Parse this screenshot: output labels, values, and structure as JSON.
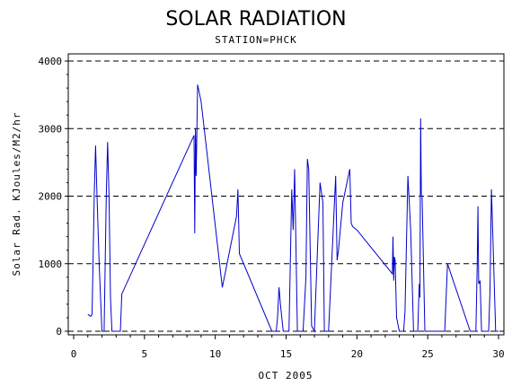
{
  "chart_data": {
    "type": "line",
    "title": "SOLAR RADIATION",
    "subtitle": "STATION=PHCK",
    "xlabel": "OCT 2005",
    "ylabel": "Solar Rad. KJoules/M2/hr",
    "xlim": [
      0,
      30
    ],
    "ylim": [
      0,
      4000
    ],
    "xticks": [
      "0",
      "5",
      "10",
      "15",
      "20",
      "25",
      "30"
    ],
    "yticks": [
      "0",
      "1000",
      "2000",
      "3000",
      "4000"
    ],
    "grid": "horizontal dashed",
    "line_color": "#0000cc",
    "series": [
      {
        "x": [
          1.0,
          1.2,
          1.3,
          1.45,
          1.55,
          1.65,
          1.8,
          2.0,
          2.15,
          2.3,
          2.4,
          2.5,
          2.6,
          2.7,
          2.9,
          3.0,
          3.3,
          3.4,
          8.5,
          8.55,
          8.6,
          8.65,
          8.75,
          9.0,
          10.5,
          11.5,
          11.6,
          11.7,
          14.0,
          14.3,
          14.4,
          14.5,
          14.6,
          14.8,
          15.0,
          15.2,
          15.3,
          15.4,
          15.5,
          15.6,
          15.8,
          16.0,
          16.2,
          16.4,
          16.5,
          16.6,
          16.8,
          17.0,
          17.4,
          17.6,
          17.7,
          17.8,
          18.0,
          18.5,
          18.6,
          18.7,
          19.0,
          19.5,
          19.6,
          19.7,
          20.0,
          22.5,
          22.55,
          22.6,
          22.65,
          22.7,
          22.8,
          23.0,
          23.3,
          23.4,
          23.6,
          23.8,
          24.0,
          24.2,
          24.3,
          24.4,
          24.45,
          24.5,
          24.55,
          24.6,
          24.8,
          25.0,
          26.2,
          26.4,
          28.0,
          28.2,
          28.4,
          28.5,
          28.55,
          28.6,
          28.7,
          28.8,
          29.0,
          29.3,
          29.4,
          29.5,
          29.6,
          29.8,
          30.0
        ],
        "values": [
          250,
          220,
          250,
          2000,
          2750,
          2000,
          1000,
          0,
          0,
          2000,
          2800,
          2000,
          500,
          0,
          0,
          0,
          0,
          550,
          2900,
          1450,
          3000,
          2300,
          3650,
          3400,
          650,
          1700,
          2100,
          1150,
          0,
          0,
          200,
          650,
          400,
          0,
          0,
          0,
          1000,
          2100,
          1500,
          2400,
          0,
          0,
          0,
          800,
          2550,
          2400,
          80,
          0,
          2200,
          1900,
          0,
          0,
          0,
          2300,
          1050,
          1200,
          1900,
          2400,
          1600,
          1550,
          1500,
          850,
          1400,
          750,
          1100,
          1050,
          200,
          0,
          0,
          300,
          2300,
          1500,
          0,
          0,
          0,
          700,
          500,
          3150,
          2000,
          2000,
          0,
          0,
          0,
          1000,
          0,
          0,
          0,
          1000,
          1850,
          700,
          750,
          0,
          0,
          0,
          600,
          2100,
          1400,
          0,
          0
        ]
      }
    ]
  }
}
